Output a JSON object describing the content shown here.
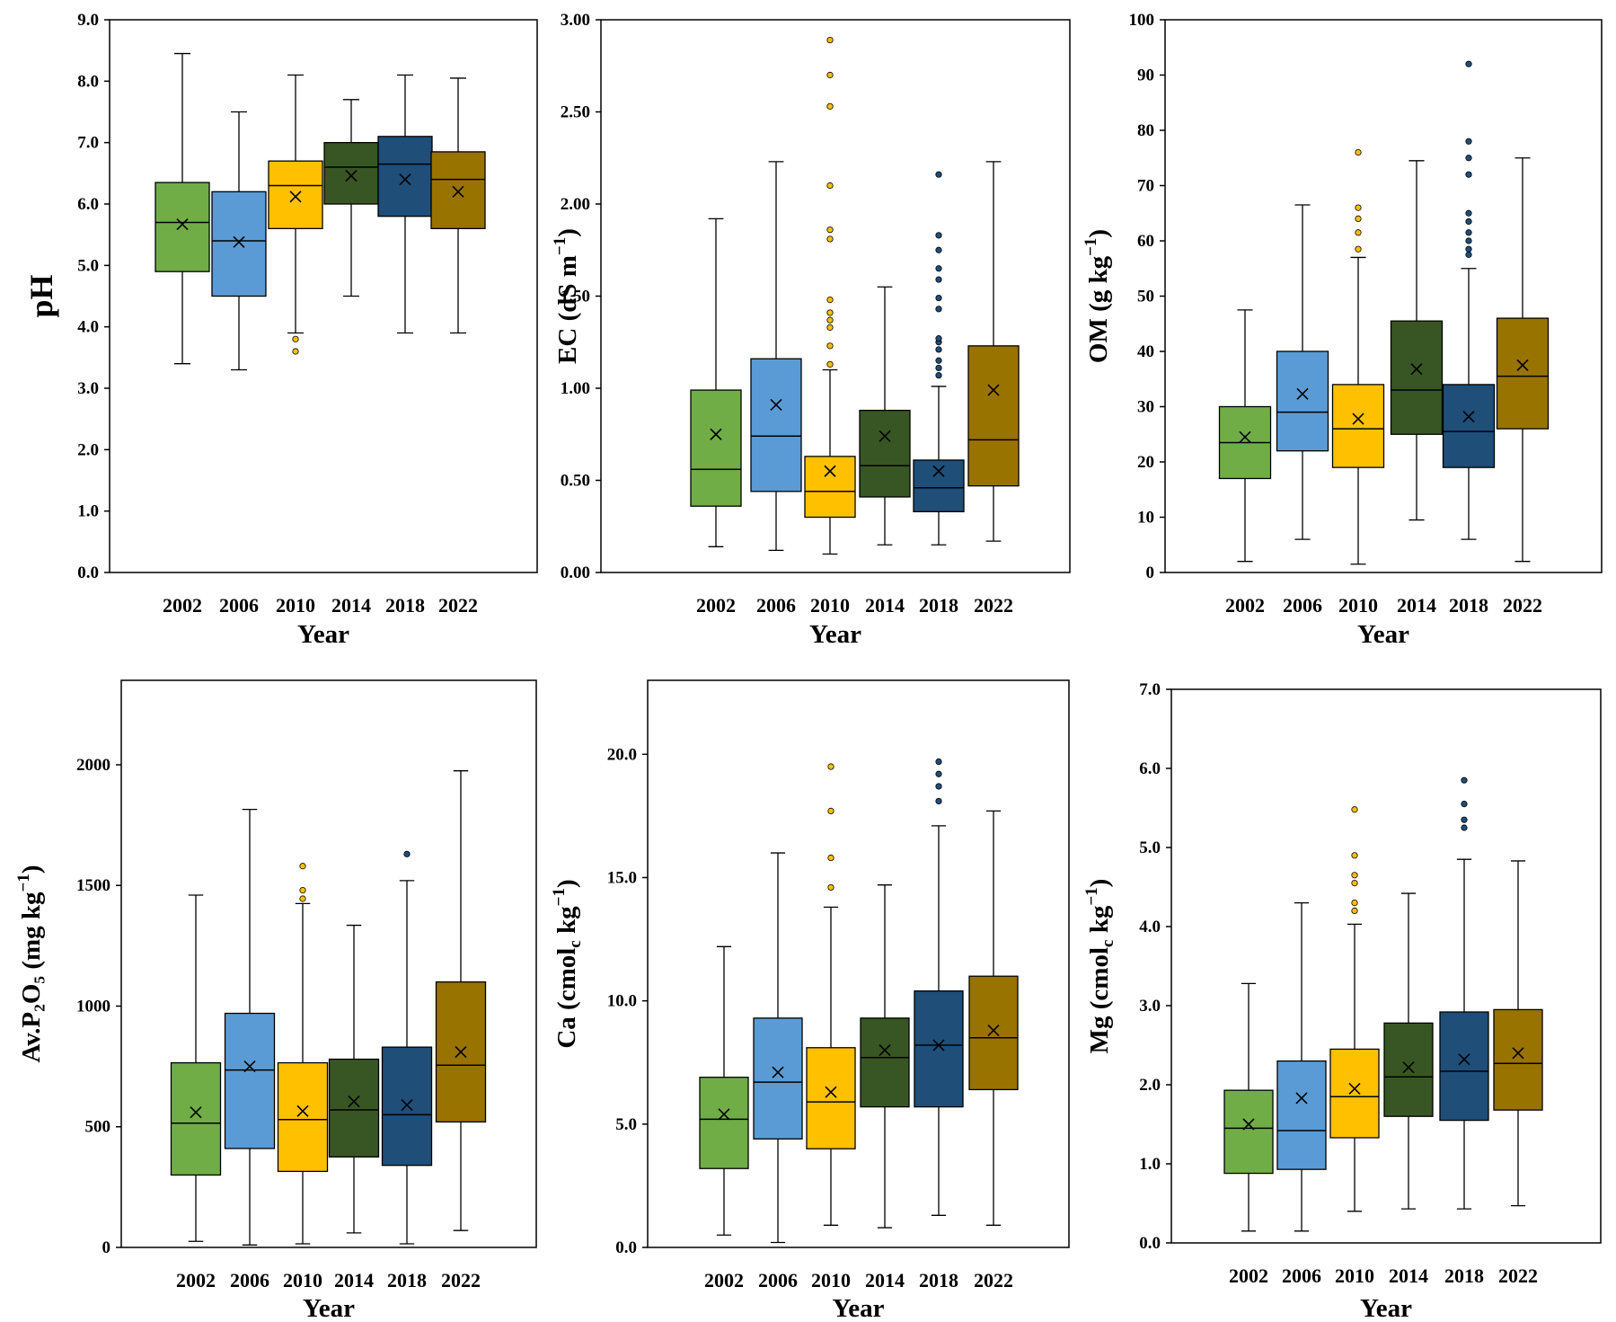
{
  "colors": [
    "#70ad47",
    "#5b9bd5",
    "#ffc000",
    "#375623",
    "#1f4e79",
    "#997300"
  ],
  "chart_data": [
    {
      "type": "box",
      "id": "ph",
      "ylabel": "pH",
      "xlabel": "Year",
      "categories": [
        "2002",
        "2006",
        "2010",
        "2014",
        "2018",
        "2022"
      ],
      "ylim": [
        0,
        9
      ],
      "yticks": [
        0,
        1,
        2,
        3,
        4,
        5,
        6,
        7,
        8,
        9
      ],
      "ytick_labels": [
        "0.0",
        "1.0",
        "2.0",
        "3.0",
        "4.0",
        "5.0",
        "6.0",
        "7.0",
        "8.0",
        "9.0"
      ],
      "boxes": [
        {
          "min": 3.4,
          "q1": 4.9,
          "median": 5.7,
          "q3": 6.35,
          "max": 8.45,
          "mean": 5.67,
          "outliers": []
        },
        {
          "min": 3.3,
          "q1": 4.5,
          "median": 5.4,
          "q3": 6.2,
          "max": 7.5,
          "mean": 5.38,
          "outliers": []
        },
        {
          "min": 3.9,
          "q1": 5.6,
          "median": 6.3,
          "q3": 6.7,
          "max": 8.1,
          "mean": 6.12,
          "outliers": [
            3.8,
            3.6
          ]
        },
        {
          "min": 4.5,
          "q1": 6.0,
          "median": 6.6,
          "q3": 7.0,
          "max": 7.7,
          "mean": 6.46,
          "outliers": []
        },
        {
          "min": 3.9,
          "q1": 5.8,
          "median": 6.65,
          "q3": 7.1,
          "max": 8.1,
          "mean": 6.4,
          "outliers": []
        },
        {
          "min": 3.9,
          "q1": 5.6,
          "median": 6.4,
          "q3": 6.85,
          "max": 8.05,
          "mean": 6.2,
          "outliers": []
        }
      ]
    },
    {
      "type": "box",
      "id": "ec",
      "ylabel_main": "EC (dS m",
      "ylabel_sup": "−1",
      "ylabel_end": ")",
      "xlabel": "Year",
      "categories": [
        "2002",
        "2006",
        "2010",
        "2014",
        "2018",
        "2022"
      ],
      "ylim": [
        0,
        3
      ],
      "yticks": [
        0,
        0.5,
        1,
        1.5,
        2,
        2.5,
        3
      ],
      "ytick_labels": [
        "0.00",
        "0.50",
        "1.00",
        "1.50",
        "2.00",
        "2.50",
        "3.00"
      ],
      "boxes": [
        {
          "min": 0.14,
          "q1": 0.36,
          "median": 0.56,
          "q3": 0.99,
          "max": 1.92,
          "mean": 0.75,
          "outliers": []
        },
        {
          "min": 0.12,
          "q1": 0.44,
          "median": 0.74,
          "q3": 1.16,
          "max": 2.23,
          "mean": 0.91,
          "outliers": []
        },
        {
          "min": 0.1,
          "q1": 0.3,
          "median": 0.44,
          "q3": 0.63,
          "max": 1.1,
          "mean": 0.55,
          "outliers": [
            1.13,
            1.23,
            1.33,
            1.37,
            1.41,
            1.48,
            1.81,
            1.86,
            2.1,
            2.53,
            2.7,
            2.89
          ]
        },
        {
          "min": 0.15,
          "q1": 0.41,
          "median": 0.58,
          "q3": 0.88,
          "max": 1.55,
          "mean": 0.74,
          "outliers": []
        },
        {
          "min": 0.15,
          "q1": 0.33,
          "median": 0.46,
          "q3": 0.61,
          "max": 1.01,
          "mean": 0.55,
          "outliers": [
            1.07,
            1.11,
            1.15,
            1.21,
            1.25,
            1.27,
            1.43,
            1.49,
            1.59,
            1.65,
            1.75,
            1.83,
            2.16
          ]
        },
        {
          "min": 0.17,
          "q1": 0.47,
          "median": 0.72,
          "q3": 1.23,
          "max": 2.23,
          "mean": 0.99,
          "outliers": []
        }
      ]
    },
    {
      "type": "box",
      "id": "om",
      "ylabel_main": "OM (g kg",
      "ylabel_sup": "−1",
      "ylabel_end": ")",
      "xlabel": "Year",
      "categories": [
        "2002",
        "2006",
        "2010",
        "2014",
        "2018",
        "2022"
      ],
      "ylim": [
        0,
        100
      ],
      "yticks": [
        0,
        10,
        20,
        30,
        40,
        50,
        60,
        70,
        80,
        90,
        100
      ],
      "ytick_labels": [
        "0",
        "10",
        "20",
        "30",
        "40",
        "50",
        "60",
        "70",
        "80",
        "90",
        "100"
      ],
      "boxes": [
        {
          "min": 2,
          "q1": 17,
          "median": 23.5,
          "q3": 30,
          "max": 47.5,
          "mean": 24.5,
          "outliers": []
        },
        {
          "min": 6,
          "q1": 22,
          "median": 29,
          "q3": 40,
          "max": 66.5,
          "mean": 32.3,
          "outliers": []
        },
        {
          "min": 1.5,
          "q1": 19,
          "median": 26,
          "q3": 34,
          "max": 57,
          "mean": 27.8,
          "outliers": [
            58.5,
            61.5,
            64,
            66,
            76
          ]
        },
        {
          "min": 9.5,
          "q1": 25,
          "median": 33,
          "q3": 45.5,
          "max": 74.5,
          "mean": 36.8,
          "outliers": []
        },
        {
          "min": 6,
          "q1": 19,
          "median": 25.5,
          "q3": 34,
          "max": 55,
          "mean": 28.2,
          "outliers": [
            57.5,
            58.5,
            60,
            61.5,
            63.5,
            65,
            72,
            75,
            78,
            92
          ]
        },
        {
          "min": 2,
          "q1": 26,
          "median": 35.5,
          "q3": 46,
          "max": 75,
          "mean": 37.5,
          "outliers": []
        }
      ]
    },
    {
      "type": "box",
      "id": "p2o5",
      "ylabel_main": "Av.P₂O₅ (mg kg",
      "ylabel_sup": "−1",
      "ylabel_end": ")",
      "xlabel": "Year",
      "categories": [
        "2002",
        "2006",
        "2010",
        "2014",
        "2018",
        "2022"
      ],
      "ylim": [
        0,
        2350
      ],
      "yticks": [
        0,
        500,
        1000,
        1500,
        2000
      ],
      "ytick_labels": [
        "0",
        "500",
        "1000",
        "1500",
        "2000"
      ],
      "boxes": [
        {
          "min": 25,
          "q1": 300,
          "median": 515,
          "q3": 765,
          "max": 1460,
          "mean": 560,
          "outliers": []
        },
        {
          "min": 10,
          "q1": 410,
          "median": 735,
          "q3": 970,
          "max": 1815,
          "mean": 750,
          "outliers": []
        },
        {
          "min": 15,
          "q1": 315,
          "median": 530,
          "q3": 765,
          "max": 1425,
          "mean": 565,
          "outliers": [
            1445,
            1480,
            1580
          ]
        },
        {
          "min": 60,
          "q1": 375,
          "median": 570,
          "q3": 780,
          "max": 1335,
          "mean": 605,
          "outliers": []
        },
        {
          "min": 15,
          "q1": 340,
          "median": 550,
          "q3": 830,
          "max": 1520,
          "mean": 590,
          "outliers": [
            1630
          ]
        },
        {
          "min": 70,
          "q1": 520,
          "median": 755,
          "q3": 1100,
          "max": 1975,
          "mean": 810,
          "outliers": []
        }
      ]
    },
    {
      "type": "box",
      "id": "ca",
      "ylabel_main": "Ca (cmol",
      "ylabel_sub": "c",
      "ylabel_mid": " kg",
      "ylabel_sup": "−1",
      "ylabel_end": ")",
      "xlabel": "Year",
      "categories": [
        "2002",
        "2006",
        "2010",
        "2014",
        "2018",
        "2022"
      ],
      "ylim": [
        0,
        23
      ],
      "yticks": [
        0,
        5,
        10,
        15,
        20
      ],
      "ytick_labels": [
        "0.0",
        "5.0",
        "10.0",
        "15.0",
        "20.0"
      ],
      "boxes": [
        {
          "min": 0.5,
          "q1": 3.2,
          "median": 5.2,
          "q3": 6.9,
          "max": 12.2,
          "mean": 5.4,
          "outliers": []
        },
        {
          "min": 0.2,
          "q1": 4.4,
          "median": 6.7,
          "q3": 9.3,
          "max": 16.0,
          "mean": 7.1,
          "outliers": []
        },
        {
          "min": 0.9,
          "q1": 4.0,
          "median": 5.9,
          "q3": 8.1,
          "max": 13.8,
          "mean": 6.3,
          "outliers": [
            14.6,
            15.8,
            17.7,
            19.5
          ]
        },
        {
          "min": 0.8,
          "q1": 5.7,
          "median": 7.7,
          "q3": 9.3,
          "max": 14.7,
          "mean": 8.0,
          "outliers": []
        },
        {
          "min": 1.3,
          "q1": 5.7,
          "median": 8.2,
          "q3": 10.4,
          "max": 17.1,
          "mean": 8.2,
          "outliers": [
            18.1,
            18.7,
            19.2,
            19.7
          ]
        },
        {
          "min": 0.9,
          "q1": 6.4,
          "median": 8.5,
          "q3": 11.0,
          "max": 17.7,
          "mean": 8.8,
          "outliers": []
        }
      ]
    },
    {
      "type": "box",
      "id": "mg",
      "ylabel_main": "Mg (cmol",
      "ylabel_sub": "c",
      "ylabel_mid": " kg",
      "ylabel_sup": "−1",
      "ylabel_end": ")",
      "xlabel": "Year",
      "categories": [
        "2002",
        "2006",
        "2010",
        "2014",
        "2018",
        "2022"
      ],
      "ylim": [
        0,
        7
      ],
      "yticks": [
        0,
        1,
        2,
        3,
        4,
        5,
        6,
        7
      ],
      "ytick_labels": [
        "0.0",
        "1.0",
        "2.0",
        "3.0",
        "4.0",
        "5.0",
        "6.0",
        "7.0"
      ],
      "boxes": [
        {
          "min": 0.15,
          "q1": 0.88,
          "median": 1.45,
          "q3": 1.93,
          "max": 3.28,
          "mean": 1.5,
          "outliers": []
        },
        {
          "min": 0.15,
          "q1": 0.93,
          "median": 1.42,
          "q3": 2.3,
          "max": 4.3,
          "mean": 1.83,
          "outliers": []
        },
        {
          "min": 0.4,
          "q1": 1.33,
          "median": 1.85,
          "q3": 2.45,
          "max": 4.03,
          "mean": 1.95,
          "outliers": [
            4.2,
            4.3,
            4.55,
            4.65,
            4.9,
            5.48
          ]
        },
        {
          "min": 0.43,
          "q1": 1.6,
          "median": 2.1,
          "q3": 2.78,
          "max": 4.42,
          "mean": 2.22,
          "outliers": []
        },
        {
          "min": 0.43,
          "q1": 1.55,
          "median": 2.17,
          "q3": 2.92,
          "max": 4.85,
          "mean": 2.32,
          "outliers": [
            5.25,
            5.35,
            5.55,
            5.85
          ]
        },
        {
          "min": 0.47,
          "q1": 1.68,
          "median": 2.27,
          "q3": 2.95,
          "max": 4.83,
          "mean": 2.4,
          "outliers": []
        }
      ]
    }
  ]
}
